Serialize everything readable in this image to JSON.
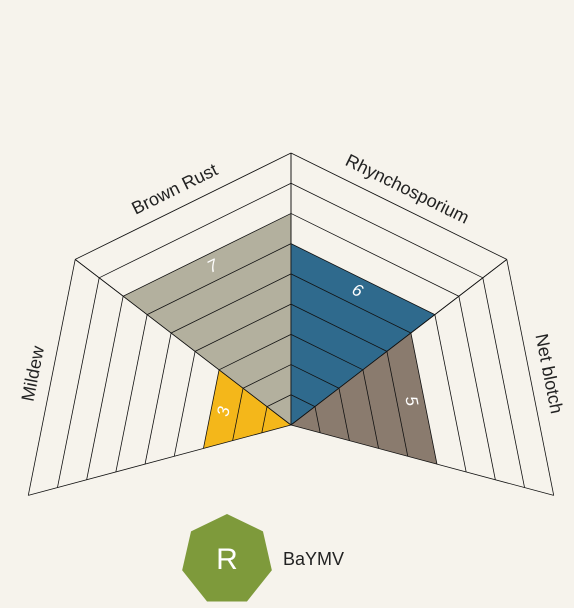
{
  "chart_data": {
    "type": "radial-segment",
    "segments": [
      {
        "name": "Mildew",
        "value": 3,
        "color": "#f4b71a"
      },
      {
        "name": "Brown Rust",
        "value": 7,
        "color": "#b3b09e"
      },
      {
        "name": "Rhynchosporium",
        "value": 6,
        "color": "#2f6a8d"
      },
      {
        "name": "Net blotch",
        "value": 5,
        "color": "#8a7b6e"
      }
    ],
    "max": 9,
    "badge": {
      "label": "R",
      "name": "BaYMV",
      "color": "#7e9a3b"
    }
  }
}
